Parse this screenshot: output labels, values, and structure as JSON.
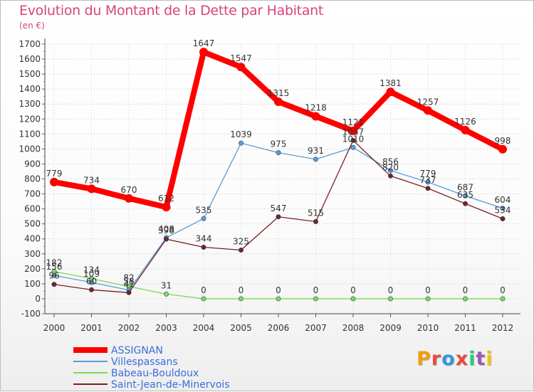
{
  "header": {
    "title": "Evolution du Montant de la Dette par Habitant",
    "unit": "(en €)"
  },
  "logo": {
    "text": "Proxiti",
    "colors": [
      "#f39c12",
      "#e74c3c",
      "#3498db",
      "#e74c3c",
      "#2ecc71",
      "#9b59b6",
      "#f1c40f"
    ]
  },
  "chart_data": {
    "type": "line",
    "title": "Evolution du Montant de la Dette par Habitant",
    "subtitle": "(en €)",
    "xlabel": "",
    "ylabel": "",
    "ylim": [
      -100,
      1700
    ],
    "yticks": [
      -100,
      0,
      100,
      200,
      300,
      400,
      500,
      600,
      700,
      800,
      900,
      1000,
      1100,
      1200,
      1300,
      1400,
      1500,
      1600,
      1700
    ],
    "categories": [
      "2000",
      "2001",
      "2002",
      "2003",
      "2004",
      "2005",
      "2006",
      "2007",
      "2008",
      "2009",
      "2010",
      "2011",
      "2012"
    ],
    "grid": true,
    "legend_position": "bottom-left",
    "series": [
      {
        "name": "ASSIGNAN",
        "color": "#ff0000",
        "values": [
          779,
          734,
          670,
          612,
          1647,
          1547,
          1315,
          1218,
          1121,
          1381,
          1257,
          1126,
          998
        ]
      },
      {
        "name": "Villespassans",
        "color": "#5b9bd5",
        "values": [
          156,
          109,
          58,
          408,
          535,
          1039,
          975,
          931,
          1010,
          856,
          779,
          687,
          604
        ]
      },
      {
        "name": "Babeau-Bouldoux",
        "color": "#7ed957",
        "values": [
          182,
          134,
          82,
          31,
          0,
          0,
          0,
          0,
          0,
          0,
          0,
          0,
          0
        ]
      },
      {
        "name": "Saint-Jean-de-Minervois",
        "color": "#7a1f22",
        "values": [
          96,
          60,
          41,
          398,
          344,
          325,
          547,
          515,
          1057,
          820,
          737,
          635,
          534
        ]
      }
    ]
  }
}
